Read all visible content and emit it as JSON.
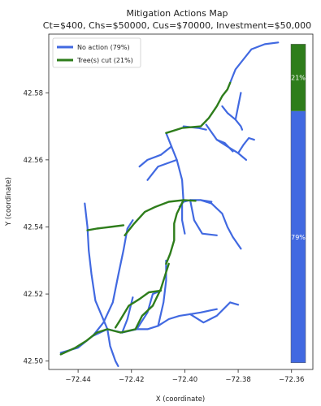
{
  "chart_data": {
    "type": "line",
    "title": "Mitigation Actions Map",
    "subtitle": "Ct=$400, Chs=$50000, Cus=$70000, Investment=$50,000",
    "xlabel": "X (coordinate)",
    "ylabel": "Y (coordinate)",
    "xlim": [
      -72.451,
      -72.352
    ],
    "ylim": [
      42.4975,
      42.5975
    ],
    "xticks": [
      "−72.44",
      "−72.42",
      "−72.40",
      "−72.38",
      "−72.36"
    ],
    "xtick_values": [
      -72.44,
      -72.42,
      -72.4,
      -72.38,
      -72.36
    ],
    "yticks": [
      "42.50",
      "42.52",
      "42.54",
      "42.56",
      "42.58"
    ],
    "ytick_values": [
      42.5,
      42.52,
      42.54,
      42.56,
      42.58
    ],
    "grid": false,
    "legend_position": "top-left",
    "series": [
      {
        "name": "No action (79%)",
        "color": "#4169e1",
        "segments": [
          [
            [
              -72.4465,
              42.5025
            ],
            [
              -72.44,
              42.504
            ],
            [
              -72.4345,
              42.5075
            ],
            [
              -72.429,
              42.5095
            ],
            [
              -72.4235,
              42.5085
            ],
            [
              -72.418,
              42.5095
            ],
            [
              -72.414,
              42.5095
            ],
            [
              -72.41,
              42.5105
            ],
            [
              -72.406,
              42.5125
            ],
            [
              -72.402,
              42.5135
            ],
            [
              -72.398,
              42.514
            ]
          ],
          [
            [
              -72.398,
              42.514
            ],
            [
              -72.394,
              42.5145
            ],
            [
              -72.391,
              42.515
            ],
            [
              -72.388,
              42.5155
            ]
          ],
          [
            [
              -72.398,
              42.514
            ],
            [
              -72.393,
              42.5115
            ],
            [
              -72.388,
              42.5135
            ],
            [
              -72.383,
              42.5175
            ],
            [
              -72.38,
              42.5168
            ]
          ],
          [
            [
              -72.4345,
              42.5075
            ],
            [
              -72.4305,
              42.5115
            ],
            [
              -72.427,
              42.5175
            ],
            [
              -72.425,
              42.5255
            ],
            [
              -72.423,
              42.533
            ],
            [
              -72.4215,
              42.5395
            ],
            [
              -72.4195,
              42.542
            ]
          ],
          [
            [
              -72.429,
              42.5095
            ],
            [
              -72.428,
              42.5045
            ],
            [
              -72.426,
              42.5
            ],
            [
              -72.425,
              42.4985
            ]
          ],
          [
            [
              -72.429,
              42.5095
            ],
            [
              -72.4335,
              42.518
            ],
            [
              -72.435,
              42.526
            ],
            [
              -72.436,
              42.533
            ],
            [
              -72.4365,
              42.54
            ],
            [
              -72.4375,
              42.547
            ]
          ],
          [
            [
              -72.418,
              42.5095
            ],
            [
              -72.414,
              42.5145
            ],
            [
              -72.412,
              42.52
            ],
            [
              -72.409,
              42.521
            ]
          ],
          [
            [
              -72.41,
              42.5105
            ],
            [
              -72.408,
              42.5175
            ],
            [
              -72.407,
              42.524
            ],
            [
              -72.407,
              42.53
            ]
          ],
          [
            [
              -72.4235,
              42.5085
            ],
            [
              -72.4215,
              42.5125
            ],
            [
              -72.4195,
              42.519
            ]
          ],
          [
            [
              -72.402,
              42.546
            ],
            [
              -72.401,
              42.547
            ],
            [
              -72.4005,
              42.5475
            ],
            [
              -72.398,
              42.548
            ],
            [
              -72.394,
              42.548
            ],
            [
              -72.39,
              42.5475
            ]
          ],
          [
            [
              -72.398,
              42.548
            ],
            [
              -72.3965,
              42.542
            ],
            [
              -72.3935,
              42.538
            ],
            [
              -72.388,
              42.5375
            ]
          ],
          [
            [
              -72.394,
              42.548
            ],
            [
              -72.39,
              42.547
            ],
            [
              -72.386,
              42.544
            ],
            [
              -72.384,
              42.54
            ],
            [
              -72.382,
              42.537
            ],
            [
              -72.379,
              42.5335
            ]
          ],
          [
            [
              -72.401,
              42.547
            ],
            [
              -72.401,
              42.542
            ],
            [
              -72.4,
              42.538
            ]
          ],
          [
            [
              -72.4005,
              42.5475
            ],
            [
              -72.401,
              42.554
            ],
            [
              -72.403,
              42.56
            ],
            [
              -72.405,
              42.564
            ],
            [
              -72.407,
              42.568
            ]
          ],
          [
            [
              -72.405,
              42.564
            ],
            [
              -72.409,
              42.5615
            ],
            [
              -72.414,
              42.56
            ],
            [
              -72.417,
              42.558
            ]
          ],
          [
            [
              -72.403,
              42.56
            ],
            [
              -72.41,
              42.558
            ],
            [
              -72.414,
              42.554
            ]
          ],
          [
            [
              -72.4005,
              42.57
            ],
            [
              -72.395,
              42.5695
            ],
            [
              -72.392,
              42.569
            ]
          ],
          [
            [
              -72.392,
              42.5705
            ],
            [
              -72.388,
              42.566
            ],
            [
              -72.384,
              42.564
            ],
            [
              -72.38,
              42.562
            ],
            [
              -72.377,
              42.56
            ]
          ],
          [
            [
              -72.388,
              42.566
            ],
            [
              -72.385,
              42.565
            ],
            [
              -72.382,
              42.5625
            ]
          ],
          [
            [
              -72.38,
              42.562
            ],
            [
              -72.378,
              42.5645
            ],
            [
              -72.376,
              42.5665
            ],
            [
              -72.374,
              42.566
            ]
          ],
          [
            [
              -72.383,
              42.583
            ],
            [
              -72.381,
              42.587
            ],
            [
              -72.378,
              42.59
            ],
            [
              -72.375,
              42.593
            ],
            [
              -72.37,
              42.5945
            ],
            [
              -72.365,
              42.595
            ]
          ],
          [
            [
              -72.386,
              42.576
            ],
            [
              -72.384,
              42.574
            ],
            [
              -72.381,
              42.572
            ],
            [
              -72.379,
              42.57
            ],
            [
              -72.3785,
              42.569
            ]
          ],
          [
            [
              -72.381,
              42.572
            ],
            [
              -72.38,
              42.576
            ],
            [
              -72.379,
              42.58
            ]
          ]
        ]
      },
      {
        "name": "Tree(s) cut (21%)",
        "color": "#2e7d1b",
        "segments": [
          [
            [
              -72.4465,
              42.502
            ],
            [
              -72.441,
              42.504
            ],
            [
              -72.437,
              42.506
            ],
            [
              -72.433,
              42.5085
            ],
            [
              -72.429,
              42.5095
            ],
            [
              -72.424,
              42.5085
            ],
            [
              -72.4185,
              42.5095
            ]
          ],
          [
            [
              -72.4185,
              42.5095
            ],
            [
              -72.416,
              42.5135
            ],
            [
              -72.412,
              42.5165
            ],
            [
              -72.409,
              42.5215
            ],
            [
              -72.407,
              42.5265
            ],
            [
              -72.406,
              42.529
            ]
          ],
          [
            [
              -72.409,
              42.521
            ],
            [
              -72.4135,
              42.5205
            ],
            [
              -72.417,
              42.5185
            ],
            [
              -72.421,
              42.5165
            ],
            [
              -72.424,
              42.5125
            ],
            [
              -72.426,
              42.51
            ]
          ],
          [
            [
              -72.4225,
              42.5375
            ],
            [
              -72.419,
              42.541
            ],
            [
              -72.415,
              42.5445
            ],
            [
              -72.411,
              42.546
            ],
            [
              -72.406,
              42.5475
            ],
            [
              -72.4005,
              42.548
            ],
            [
              -72.396,
              42.5478
            ]
          ],
          [
            [
              -72.4365,
              42.539
            ],
            [
              -72.433,
              42.5395
            ],
            [
              -72.428,
              42.54
            ],
            [
              -72.423,
              42.5405
            ]
          ],
          [
            [
              -72.4005,
              42.548
            ],
            [
              -72.403,
              42.544
            ],
            [
              -72.404,
              42.541
            ],
            [
              -72.404,
              42.536
            ],
            [
              -72.4055,
              42.532
            ],
            [
              -72.407,
              42.529
            ]
          ],
          [
            [
              -72.407,
              42.568
            ],
            [
              -72.401,
              42.5695
            ],
            [
              -72.394,
              42.57
            ],
            [
              -72.391,
              42.5725
            ],
            [
              -72.388,
              42.576
            ],
            [
              -72.386,
              42.579
            ],
            [
              -72.384,
              42.581
            ],
            [
              -72.383,
              42.583
            ]
          ]
        ]
      }
    ],
    "bar": {
      "segments": [
        {
          "label": "79%",
          "value": 79,
          "color": "#4169e1"
        },
        {
          "label": "21%",
          "value": 21,
          "color": "#2e7d1b"
        }
      ]
    }
  }
}
